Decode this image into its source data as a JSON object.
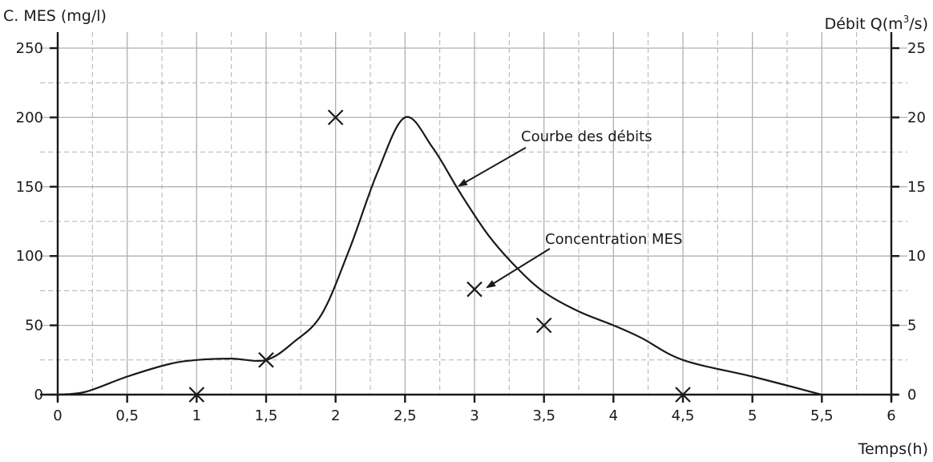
{
  "chart_data": {
    "type": "line",
    "left_axis_title": "C. MES (mg/l)",
    "right_axis_title_prefix": "Débit Q(m",
    "right_axis_title_sup": "3",
    "right_axis_title_suffix": "/s)",
    "x_axis_title": "Temps(h)",
    "xlim": [
      0,
      6
    ],
    "ylim_left": [
      0,
      250
    ],
    "ylim_right": [
      0,
      25
    ],
    "x_ticks": [
      0,
      0.5,
      1,
      1.5,
      2,
      2.5,
      3,
      3.5,
      4,
      4.5,
      5,
      5.5,
      6
    ],
    "x_tick_labels": [
      "0",
      "0,5",
      "1",
      "1,5",
      "2",
      "2,5",
      "3",
      "3,5",
      "4",
      "4,5",
      "5",
      "5,5",
      "6"
    ],
    "y_left_ticks": [
      0,
      50,
      100,
      150,
      200,
      250
    ],
    "y_left_tick_labels": [
      "0",
      "50",
      "100",
      "150",
      "200",
      "250"
    ],
    "y_right_ticks": [
      0,
      5,
      10,
      15,
      20,
      25
    ],
    "y_right_tick_labels": [
      "0",
      "5",
      "10",
      "15",
      "20",
      "25"
    ],
    "grid": true,
    "series": [
      {
        "type": "line",
        "axis": "right",
        "x": [
          0,
          0.2,
          0.5,
          0.8,
          1.0,
          1.25,
          1.5,
          1.7,
          1.9,
          2.1,
          2.3,
          2.5,
          2.7,
          2.9,
          3.1,
          3.3,
          3.5,
          3.75,
          4.0,
          4.2,
          4.5,
          5.0,
          5.5
        ],
        "values": [
          0,
          0.2,
          1.3,
          2.2,
          2.5,
          2.6,
          2.5,
          3.8,
          5.8,
          10.5,
          16.0,
          20.0,
          17.8,
          14.5,
          11.5,
          9.2,
          7.4,
          6.0,
          5.0,
          4.1,
          2.5,
          1.3,
          0
        ]
      },
      {
        "type": "scatter",
        "axis": "left",
        "marker": "x",
        "x": [
          1.0,
          1.5,
          2.0,
          3.0,
          3.5,
          4.5
        ],
        "values": [
          0,
          25,
          200,
          76,
          50,
          0
        ]
      }
    ],
    "annotations": [
      {
        "text": "Courbe des débits",
        "points_to": [
          2.9,
          15
        ]
      },
      {
        "text": "Concentration MES",
        "points_to": [
          3.08,
          7.8
        ]
      }
    ]
  }
}
